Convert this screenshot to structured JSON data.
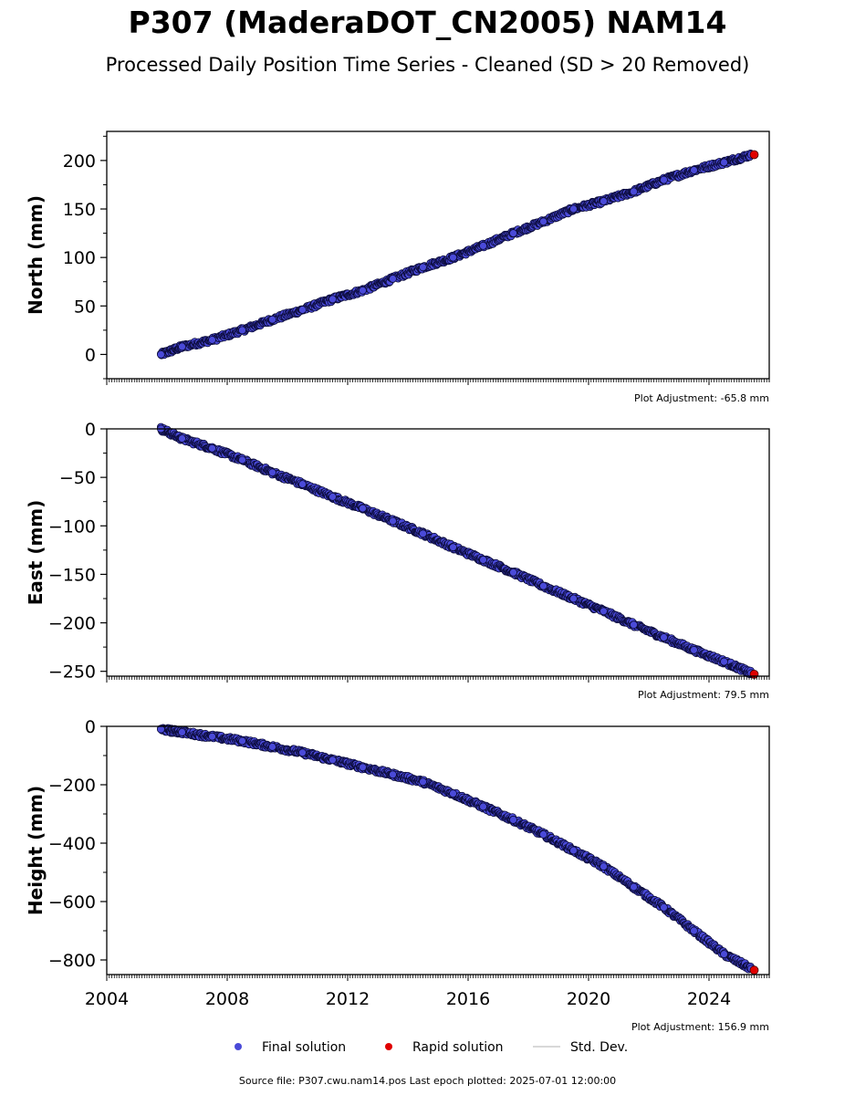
{
  "title": "P307 (MaderaDOT_CN2005) NAM14",
  "subtitle": "Processed Daily Position Time Series - Cleaned (SD > 20 Removed)",
  "colors": {
    "final_fill": "#4a4ad8",
    "final_edge": "#0b0b3a",
    "rapid_fill": "#e00000",
    "std_dev": "#cccccc"
  },
  "legend": {
    "final": "Final solution",
    "rapid": "Rapid solution",
    "std": "Std. Dev."
  },
  "footer": "Source file: P307.cwu.nam14.pos  Last epoch plotted: 2025-07-01 12:00:00",
  "chart_data": [
    {
      "type": "scatter",
      "ylabel": "North (mm)",
      "xlim": [
        2004,
        2026
      ],
      "ylim": [
        -25,
        230
      ],
      "yticks": [
        0,
        50,
        100,
        150,
        200
      ],
      "adjustment": "Plot Adjustment: -65.8 mm",
      "series": [
        {
          "name": "Final solution",
          "x": [
            2005.8,
            2006.5,
            2007.5,
            2008.5,
            2009.5,
            2010.5,
            2011.5,
            2012.5,
            2013.5,
            2014.5,
            2015.5,
            2016.5,
            2017.5,
            2018.5,
            2019.5,
            2020.5,
            2021.5,
            2022.5,
            2023.5,
            2024.5,
            2025.4
          ],
          "y": [
            0,
            8,
            15,
            25,
            36,
            46,
            57,
            66,
            78,
            90,
            100,
            112,
            125,
            137,
            150,
            158,
            168,
            180,
            190,
            198,
            206
          ]
        },
        {
          "name": "Rapid solution",
          "x": [
            2025.5
          ],
          "y": [
            206
          ]
        }
      ]
    },
    {
      "type": "scatter",
      "ylabel": "East (mm)",
      "xlim": [
        2004,
        2026
      ],
      "ylim": [
        -255,
        0
      ],
      "yticks": [
        0,
        -50,
        -100,
        -150,
        -200,
        -250
      ],
      "adjustment": "Plot Adjustment: 79.5 mm",
      "series": [
        {
          "name": "Final solution",
          "x": [
            2005.8,
            2006.5,
            2007.5,
            2008.5,
            2009.5,
            2010.5,
            2011.5,
            2012.5,
            2013.5,
            2014.5,
            2015.5,
            2016.5,
            2017.5,
            2018.5,
            2019.5,
            2020.5,
            2021.5,
            2022.5,
            2023.5,
            2024.5,
            2025.4
          ],
          "y": [
            0,
            -10,
            -20,
            -32,
            -45,
            -57,
            -70,
            -82,
            -95,
            -108,
            -122,
            -135,
            -148,
            -162,
            -175,
            -188,
            -202,
            -215,
            -228,
            -240,
            -252
          ]
        },
        {
          "name": "Rapid solution",
          "x": [
            2025.5
          ],
          "y": [
            -253
          ]
        }
      ]
    },
    {
      "type": "scatter",
      "ylabel": "Height (mm)",
      "xlim": [
        2004,
        2026
      ],
      "ylim": [
        -850,
        0
      ],
      "yticks": [
        0,
        -200,
        -400,
        -600,
        -800
      ],
      "xticks": [
        2004,
        2008,
        2012,
        2016,
        2020,
        2024
      ],
      "adjustment": "Plot Adjustment: 156.9 mm",
      "series": [
        {
          "name": "Final solution",
          "x": [
            2005.8,
            2006.5,
            2007.5,
            2008.5,
            2009.5,
            2010.5,
            2011.5,
            2012.5,
            2013.5,
            2014.5,
            2015.5,
            2016.5,
            2017.5,
            2018.5,
            2019.5,
            2020.5,
            2021.5,
            2022.5,
            2023.5,
            2024.5,
            2025.4
          ],
          "y": [
            -10,
            -20,
            -35,
            -50,
            -70,
            -90,
            -115,
            -140,
            -165,
            -190,
            -230,
            -275,
            -320,
            -370,
            -425,
            -480,
            -550,
            -620,
            -700,
            -780,
            -830
          ]
        },
        {
          "name": "Rapid solution",
          "x": [
            2025.5
          ],
          "y": [
            -835
          ]
        }
      ]
    }
  ]
}
